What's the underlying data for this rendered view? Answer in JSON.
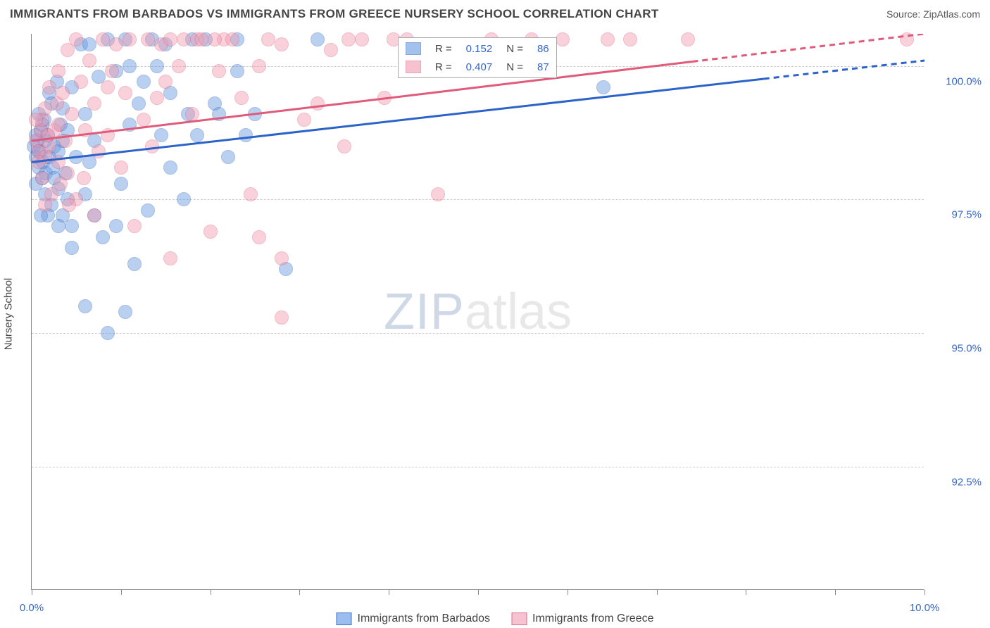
{
  "title": "IMMIGRANTS FROM BARBADOS VS IMMIGRANTS FROM GREECE NURSERY SCHOOL CORRELATION CHART",
  "source": "Source: ZipAtlas.com",
  "watermark": {
    "part1": "ZIP",
    "part2": "atlas"
  },
  "chart": {
    "type": "scatter",
    "xlim": [
      0,
      10
    ],
    "ylim": [
      90.2,
      100.6
    ],
    "x_ticks": [
      0,
      1,
      2,
      3,
      4,
      5,
      6,
      7,
      8,
      9,
      10
    ],
    "x_tick_labels": {
      "0": "0.0%",
      "10": "10.0%"
    },
    "y_ticks": [
      92.5,
      95.0,
      97.5,
      100.0
    ],
    "y_tick_labels": [
      "92.5%",
      "95.0%",
      "97.5%",
      "100.0%"
    ],
    "y_axis_label": "Nursery School",
    "background_color": "#ffffff",
    "grid_color": "#cccccc",
    "marker_radius": 10,
    "marker_opacity": 0.45,
    "series": [
      {
        "name": "Immigrants from Barbados",
        "color_fill": "#6699e0",
        "color_stroke": "#3b6fc0",
        "R": "0.152",
        "N": "86",
        "trend": {
          "x1": 0.0,
          "y1": 98.2,
          "x2": 10.0,
          "y2": 100.1,
          "solid_until_x": 8.2,
          "color": "#2b63c9",
          "width": 3
        },
        "points": [
          [
            0.02,
            98.5
          ],
          [
            0.05,
            98.3
          ],
          [
            0.06,
            98.6
          ],
          [
            0.08,
            98.1
          ],
          [
            0.1,
            98.4
          ],
          [
            0.1,
            98.8
          ],
          [
            0.12,
            97.9
          ],
          [
            0.13,
            98.2
          ],
          [
            0.14,
            99.0
          ],
          [
            0.15,
            98.6
          ],
          [
            0.15,
            97.6
          ],
          [
            0.16,
            98.0
          ],
          [
            0.18,
            98.7
          ],
          [
            0.2,
            99.5
          ],
          [
            0.2,
            98.3
          ],
          [
            0.22,
            97.4
          ],
          [
            0.24,
            98.1
          ],
          [
            0.25,
            97.9
          ],
          [
            0.25,
            98.5
          ],
          [
            0.28,
            99.7
          ],
          [
            0.3,
            97.7
          ],
          [
            0.3,
            98.4
          ],
          [
            0.32,
            98.9
          ],
          [
            0.35,
            97.2
          ],
          [
            0.35,
            99.2
          ],
          [
            0.38,
            98.0
          ],
          [
            0.4,
            97.5
          ],
          [
            0.4,
            98.8
          ],
          [
            0.45,
            97.0
          ],
          [
            0.45,
            99.6
          ],
          [
            0.5,
            98.3
          ],
          [
            0.55,
            100.4
          ],
          [
            0.6,
            99.1
          ],
          [
            0.6,
            97.6
          ],
          [
            0.65,
            100.4
          ],
          [
            0.7,
            98.6
          ],
          [
            0.7,
            97.2
          ],
          [
            0.75,
            99.8
          ],
          [
            0.8,
            96.8
          ],
          [
            0.85,
            100.5
          ],
          [
            0.85,
            95.0
          ],
          [
            0.95,
            99.9
          ],
          [
            0.95,
            97.0
          ],
          [
            1.05,
            95.4
          ],
          [
            1.05,
            100.5
          ],
          [
            1.1,
            98.9
          ],
          [
            1.1,
            100.0
          ],
          [
            1.15,
            96.3
          ],
          [
            1.2,
            99.3
          ],
          [
            1.25,
            99.7
          ],
          [
            1.3,
            97.3
          ],
          [
            1.35,
            100.5
          ],
          [
            1.4,
            100.0
          ],
          [
            1.45,
            98.7
          ],
          [
            1.5,
            100.4
          ],
          [
            1.55,
            99.5
          ],
          [
            1.55,
            98.1
          ],
          [
            1.7,
            97.5
          ],
          [
            1.75,
            99.1
          ],
          [
            1.8,
            100.5
          ],
          [
            1.85,
            98.7
          ],
          [
            1.95,
            100.5
          ],
          [
            2.05,
            99.3
          ],
          [
            2.1,
            99.1
          ],
          [
            2.2,
            98.3
          ],
          [
            2.3,
            99.9
          ],
          [
            2.3,
            100.5
          ],
          [
            2.4,
            98.7
          ],
          [
            2.5,
            99.1
          ],
          [
            2.85,
            96.2
          ],
          [
            3.2,
            100.5
          ],
          [
            0.6,
            95.5
          ],
          [
            0.05,
            97.8
          ],
          [
            0.12,
            98.9
          ],
          [
            0.22,
            99.3
          ],
          [
            0.05,
            98.7
          ],
          [
            0.08,
            99.1
          ],
          [
            0.3,
            97.0
          ],
          [
            0.18,
            97.2
          ],
          [
            0.45,
            96.6
          ],
          [
            0.65,
            98.2
          ],
          [
            1.0,
            97.8
          ],
          [
            6.4,
            99.6
          ],
          [
            0.1,
            97.2
          ],
          [
            0.08,
            98.4
          ],
          [
            0.35,
            98.6
          ]
        ]
      },
      {
        "name": "Immigrants from Greece",
        "color_fill": "#f29bb0",
        "color_stroke": "#e06a88",
        "R": "0.407",
        "N": "87",
        "trend": {
          "x1": 0.0,
          "y1": 98.6,
          "x2": 10.0,
          "y2": 100.6,
          "solid_until_x": 7.4,
          "color": "#e05a7a",
          "width": 3
        },
        "points": [
          [
            0.05,
            98.6
          ],
          [
            0.08,
            98.4
          ],
          [
            0.1,
            98.8
          ],
          [
            0.12,
            99.0
          ],
          [
            0.15,
            98.3
          ],
          [
            0.15,
            99.2
          ],
          [
            0.18,
            98.7
          ],
          [
            0.2,
            98.5
          ],
          [
            0.2,
            99.6
          ],
          [
            0.22,
            97.6
          ],
          [
            0.25,
            98.8
          ],
          [
            0.28,
            99.3
          ],
          [
            0.3,
            98.2
          ],
          [
            0.3,
            99.9
          ],
          [
            0.32,
            97.8
          ],
          [
            0.35,
            99.5
          ],
          [
            0.38,
            98.6
          ],
          [
            0.4,
            100.3
          ],
          [
            0.4,
            98.0
          ],
          [
            0.45,
            99.1
          ],
          [
            0.5,
            100.5
          ],
          [
            0.5,
            97.5
          ],
          [
            0.55,
            99.7
          ],
          [
            0.6,
            98.8
          ],
          [
            0.65,
            100.1
          ],
          [
            0.7,
            99.3
          ],
          [
            0.7,
            97.2
          ],
          [
            0.8,
            100.5
          ],
          [
            0.85,
            98.7
          ],
          [
            0.9,
            99.9
          ],
          [
            0.95,
            100.4
          ],
          [
            1.0,
            98.1
          ],
          [
            1.05,
            99.5
          ],
          [
            1.1,
            100.5
          ],
          [
            1.15,
            97.0
          ],
          [
            1.25,
            99.0
          ],
          [
            1.3,
            100.5
          ],
          [
            1.35,
            98.5
          ],
          [
            1.45,
            100.4
          ],
          [
            1.5,
            99.7
          ],
          [
            1.55,
            96.4
          ],
          [
            1.65,
            100.0
          ],
          [
            1.7,
            100.5
          ],
          [
            1.8,
            99.1
          ],
          [
            1.85,
            100.5
          ],
          [
            2.0,
            96.9
          ],
          [
            2.1,
            99.9
          ],
          [
            2.15,
            100.5
          ],
          [
            2.25,
            100.5
          ],
          [
            2.35,
            99.4
          ],
          [
            2.45,
            97.6
          ],
          [
            2.55,
            100.0
          ],
          [
            2.55,
            96.8
          ],
          [
            2.65,
            100.5
          ],
          [
            2.8,
            96.4
          ],
          [
            2.8,
            100.4
          ],
          [
            2.8,
            95.3
          ],
          [
            3.05,
            99.0
          ],
          [
            3.2,
            99.3
          ],
          [
            3.35,
            100.3
          ],
          [
            3.5,
            98.5
          ],
          [
            3.55,
            100.5
          ],
          [
            3.7,
            100.5
          ],
          [
            3.95,
            99.4
          ],
          [
            4.05,
            100.5
          ],
          [
            4.2,
            100.5
          ],
          [
            4.55,
            97.6
          ],
          [
            5.15,
            100.5
          ],
          [
            5.6,
            100.5
          ],
          [
            5.95,
            100.5
          ],
          [
            6.45,
            100.5
          ],
          [
            6.7,
            100.5
          ],
          [
            7.35,
            100.5
          ],
          [
            9.8,
            100.5
          ],
          [
            0.12,
            97.9
          ],
          [
            0.15,
            97.4
          ],
          [
            0.05,
            99.0
          ],
          [
            0.75,
            98.4
          ],
          [
            0.85,
            99.6
          ],
          [
            1.4,
            99.4
          ],
          [
            1.9,
            100.5
          ],
          [
            0.08,
            98.2
          ],
          [
            0.3,
            98.9
          ],
          [
            0.42,
            97.4
          ],
          [
            0.58,
            97.9
          ],
          [
            2.05,
            100.5
          ],
          [
            1.55,
            100.5
          ]
        ]
      }
    ]
  },
  "legend_top": {
    "r_label": "R =",
    "n_label": "N =",
    "value_color": "#3366cc"
  },
  "legend_bottom_labels": [
    "Immigrants from Barbados",
    "Immigrants from Greece"
  ]
}
